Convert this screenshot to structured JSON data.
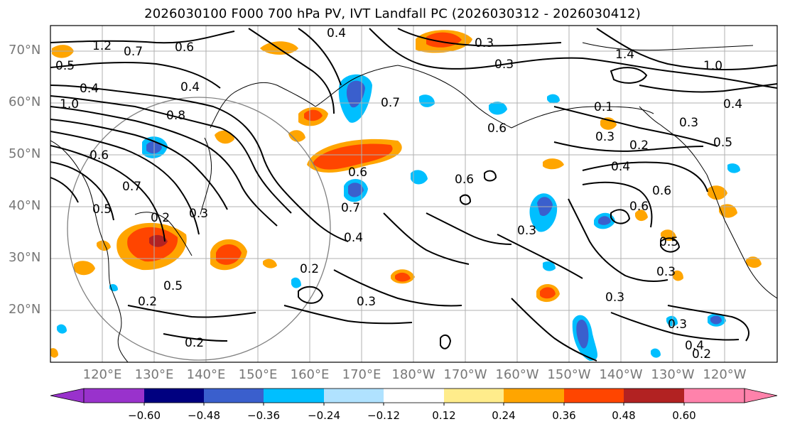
{
  "title": "2026030100 F000 700 hPa PV, IVT Landfall PC (2026030312 - 2026030412)",
  "map": {
    "lat_labels": [
      "70°N",
      "60°N",
      "50°N",
      "40°N",
      "30°N",
      "20°N"
    ],
    "lon_labels": [
      "120°E",
      "130°E",
      "140°E",
      "150°E",
      "160°E",
      "170°E",
      "180°W",
      "170°W",
      "160°W",
      "150°W",
      "140°W",
      "130°W",
      "120°W"
    ],
    "contour_labels": [
      {
        "text": "1.2"
      },
      {
        "text": "0.7"
      },
      {
        "text": "0.6"
      },
      {
        "text": "0.5"
      },
      {
        "text": "0.4"
      },
      {
        "text": "1.0"
      },
      {
        "text": "0.8"
      },
      {
        "text": "0.4"
      },
      {
        "text": "0.6"
      },
      {
        "text": "0.7"
      },
      {
        "text": "0.5"
      },
      {
        "text": "0.2"
      },
      {
        "text": "0.3"
      },
      {
        "text": "0.5"
      },
      {
        "text": "0.2"
      },
      {
        "text": "0.2"
      },
      {
        "text": "0.2"
      },
      {
        "text": "0.3"
      },
      {
        "text": "0.4"
      },
      {
        "text": "0.6"
      },
      {
        "text": "0.7"
      },
      {
        "text": "0.4"
      },
      {
        "text": "0.3"
      },
      {
        "text": "0.7"
      },
      {
        "text": "0.6"
      },
      {
        "text": "1.4"
      },
      {
        "text": "1.0"
      },
      {
        "text": "0.4"
      },
      {
        "text": "0.1"
      },
      {
        "text": "0.3"
      },
      {
        "text": "0.3"
      },
      {
        "text": "0.2"
      },
      {
        "text": "0.5"
      },
      {
        "text": "0.4"
      },
      {
        "text": "0.6"
      },
      {
        "text": "0.6"
      },
      {
        "text": "0.5"
      },
      {
        "text": "0.3"
      },
      {
        "text": "0.3"
      },
      {
        "text": "0.3"
      },
      {
        "text": "0.3"
      },
      {
        "text": "0.4"
      },
      {
        "text": "0.2"
      },
      {
        "text": "0.3"
      },
      {
        "text": "0.6"
      }
    ],
    "colors": {
      "contour": "#000000",
      "coast": "#000000",
      "grid": "#b0b0b0",
      "circle": "#808080",
      "label": "#777777"
    }
  },
  "colorbar": {
    "ticks": [
      "−0.60",
      "−0.48",
      "−0.36",
      "−0.24",
      "−0.12",
      "0.12",
      "0.24",
      "0.36",
      "0.48",
      "0.60"
    ],
    "bins": [
      {
        "color": "#9932cc"
      },
      {
        "color": "#000080"
      },
      {
        "color": "#3a5fcd"
      },
      {
        "color": "#00bfff"
      },
      {
        "color": "#b0e2ff"
      },
      {
        "color": "#ffffff"
      },
      {
        "color": "#ffec8b"
      },
      {
        "color": "#ffa500"
      },
      {
        "color": "#ff4500"
      },
      {
        "color": "#b22222"
      },
      {
        "color": "#ff82ab"
      }
    ]
  }
}
